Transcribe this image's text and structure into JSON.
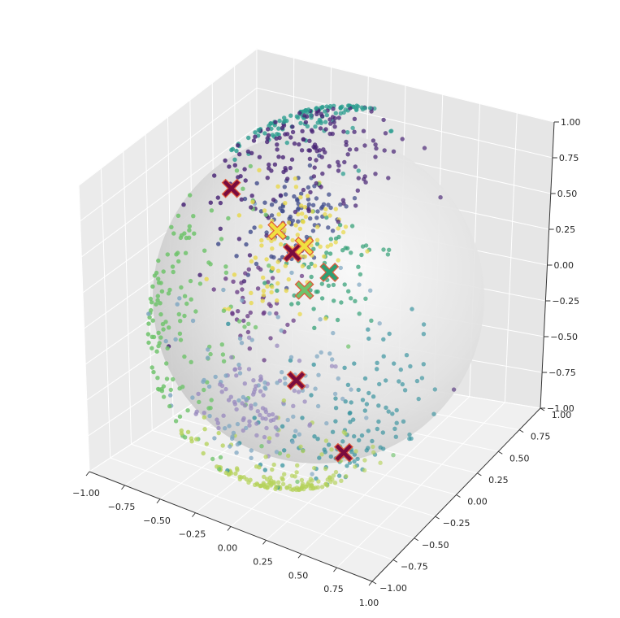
{
  "chart_data": {
    "type": "scatter",
    "projection": "3d",
    "title": "",
    "xlabel": "",
    "ylabel": "",
    "zlabel": "",
    "xlim": [
      -1,
      1
    ],
    "ylim": [
      -1,
      1
    ],
    "zlim": [
      -1,
      1
    ],
    "grid": true,
    "legend": "none",
    "x_ticks": [
      "−1.00",
      "−0.75",
      "−0.50",
      "−0.25",
      "0.00",
      "0.25",
      "0.50",
      "0.75",
      "1.00"
    ],
    "y_ticks": [
      "−1.00",
      "−0.75",
      "−0.50",
      "−0.25",
      "0.00",
      "0.25",
      "0.50",
      "0.75",
      "1.00"
    ],
    "z_ticks": [
      "−1.00",
      "−0.75",
      "−0.50",
      "−0.25",
      "0.00",
      "0.25",
      "0.50",
      "0.75",
      "1.00"
    ],
    "surface": {
      "shape": "unit sphere",
      "color": "#dcdcdc"
    },
    "colormap": "viridis",
    "clusters": [
      {
        "color": "#482475",
        "center": [
          0.05,
          -0.1,
          0.95
        ],
        "spread": 0.3,
        "count": 170
      },
      {
        "color": "#2a9d8f",
        "center": [
          -0.45,
          0.3,
          0.6
        ],
        "spread": 0.22,
        "count": 110
      },
      {
        "color": "#e8d84a",
        "center": [
          0.35,
          -0.4,
          0.65
        ],
        "spread": 0.17,
        "count": 100
      },
      {
        "color": "#3e4a89",
        "center": [
          -0.8,
          0.45,
          -0.05
        ],
        "spread": 0.16,
        "count": 90
      },
      {
        "color": "#2e9e73",
        "center": [
          -0.65,
          0.55,
          -0.4
        ],
        "spread": 0.16,
        "count": 70
      },
      {
        "color": "#6fc36b",
        "center": [
          -0.05,
          -0.2,
          0.05
        ],
        "spread": 0.42,
        "count": 140
      },
      {
        "color": "#b5d25a",
        "center": [
          0.25,
          -0.45,
          -0.55
        ],
        "spread": 0.28,
        "count": 150
      },
      {
        "color": "#9a8bbf",
        "center": [
          0.5,
          -0.85,
          -0.05
        ],
        "spread": 0.16,
        "count": 80
      },
      {
        "color": "#7fa7c2",
        "center": [
          0.45,
          -0.7,
          0.05
        ],
        "spread": 0.3,
        "count": 90
      },
      {
        "color": "#2f8f9b",
        "center": [
          -0.05,
          0.25,
          -0.95
        ],
        "spread": 0.26,
        "count": 120
      },
      {
        "color": "#6a3d86",
        "center": [
          -0.85,
          0.2,
          -0.4
        ],
        "spread": 0.15,
        "count": 40
      }
    ],
    "centroid_markers": [
      {
        "color": "#7a0b3e",
        "position": [
          -0.95,
          0.1,
          0.3
        ]
      },
      {
        "color": "#7a0b3e",
        "position": [
          0.7,
          -0.7,
          0.1
        ]
      },
      {
        "color": "#7a0b3e",
        "position": [
          -0.85,
          0.45,
          -0.25
        ]
      },
      {
        "color": "#f0e040",
        "position": [
          -0.8,
          0.5,
          -0.22
        ]
      },
      {
        "color": "#f0e040",
        "position": [
          0.3,
          -0.5,
          0.78
        ]
      },
      {
        "color": "#6fc36b",
        "position": [
          0.0,
          -0.1,
          0.1
        ]
      },
      {
        "color": "#2e9e73",
        "position": [
          -0.7,
          0.6,
          -0.4
        ]
      },
      {
        "color": "#7a0b3e",
        "position": [
          0.05,
          0.1,
          -0.99
        ]
      }
    ]
  }
}
